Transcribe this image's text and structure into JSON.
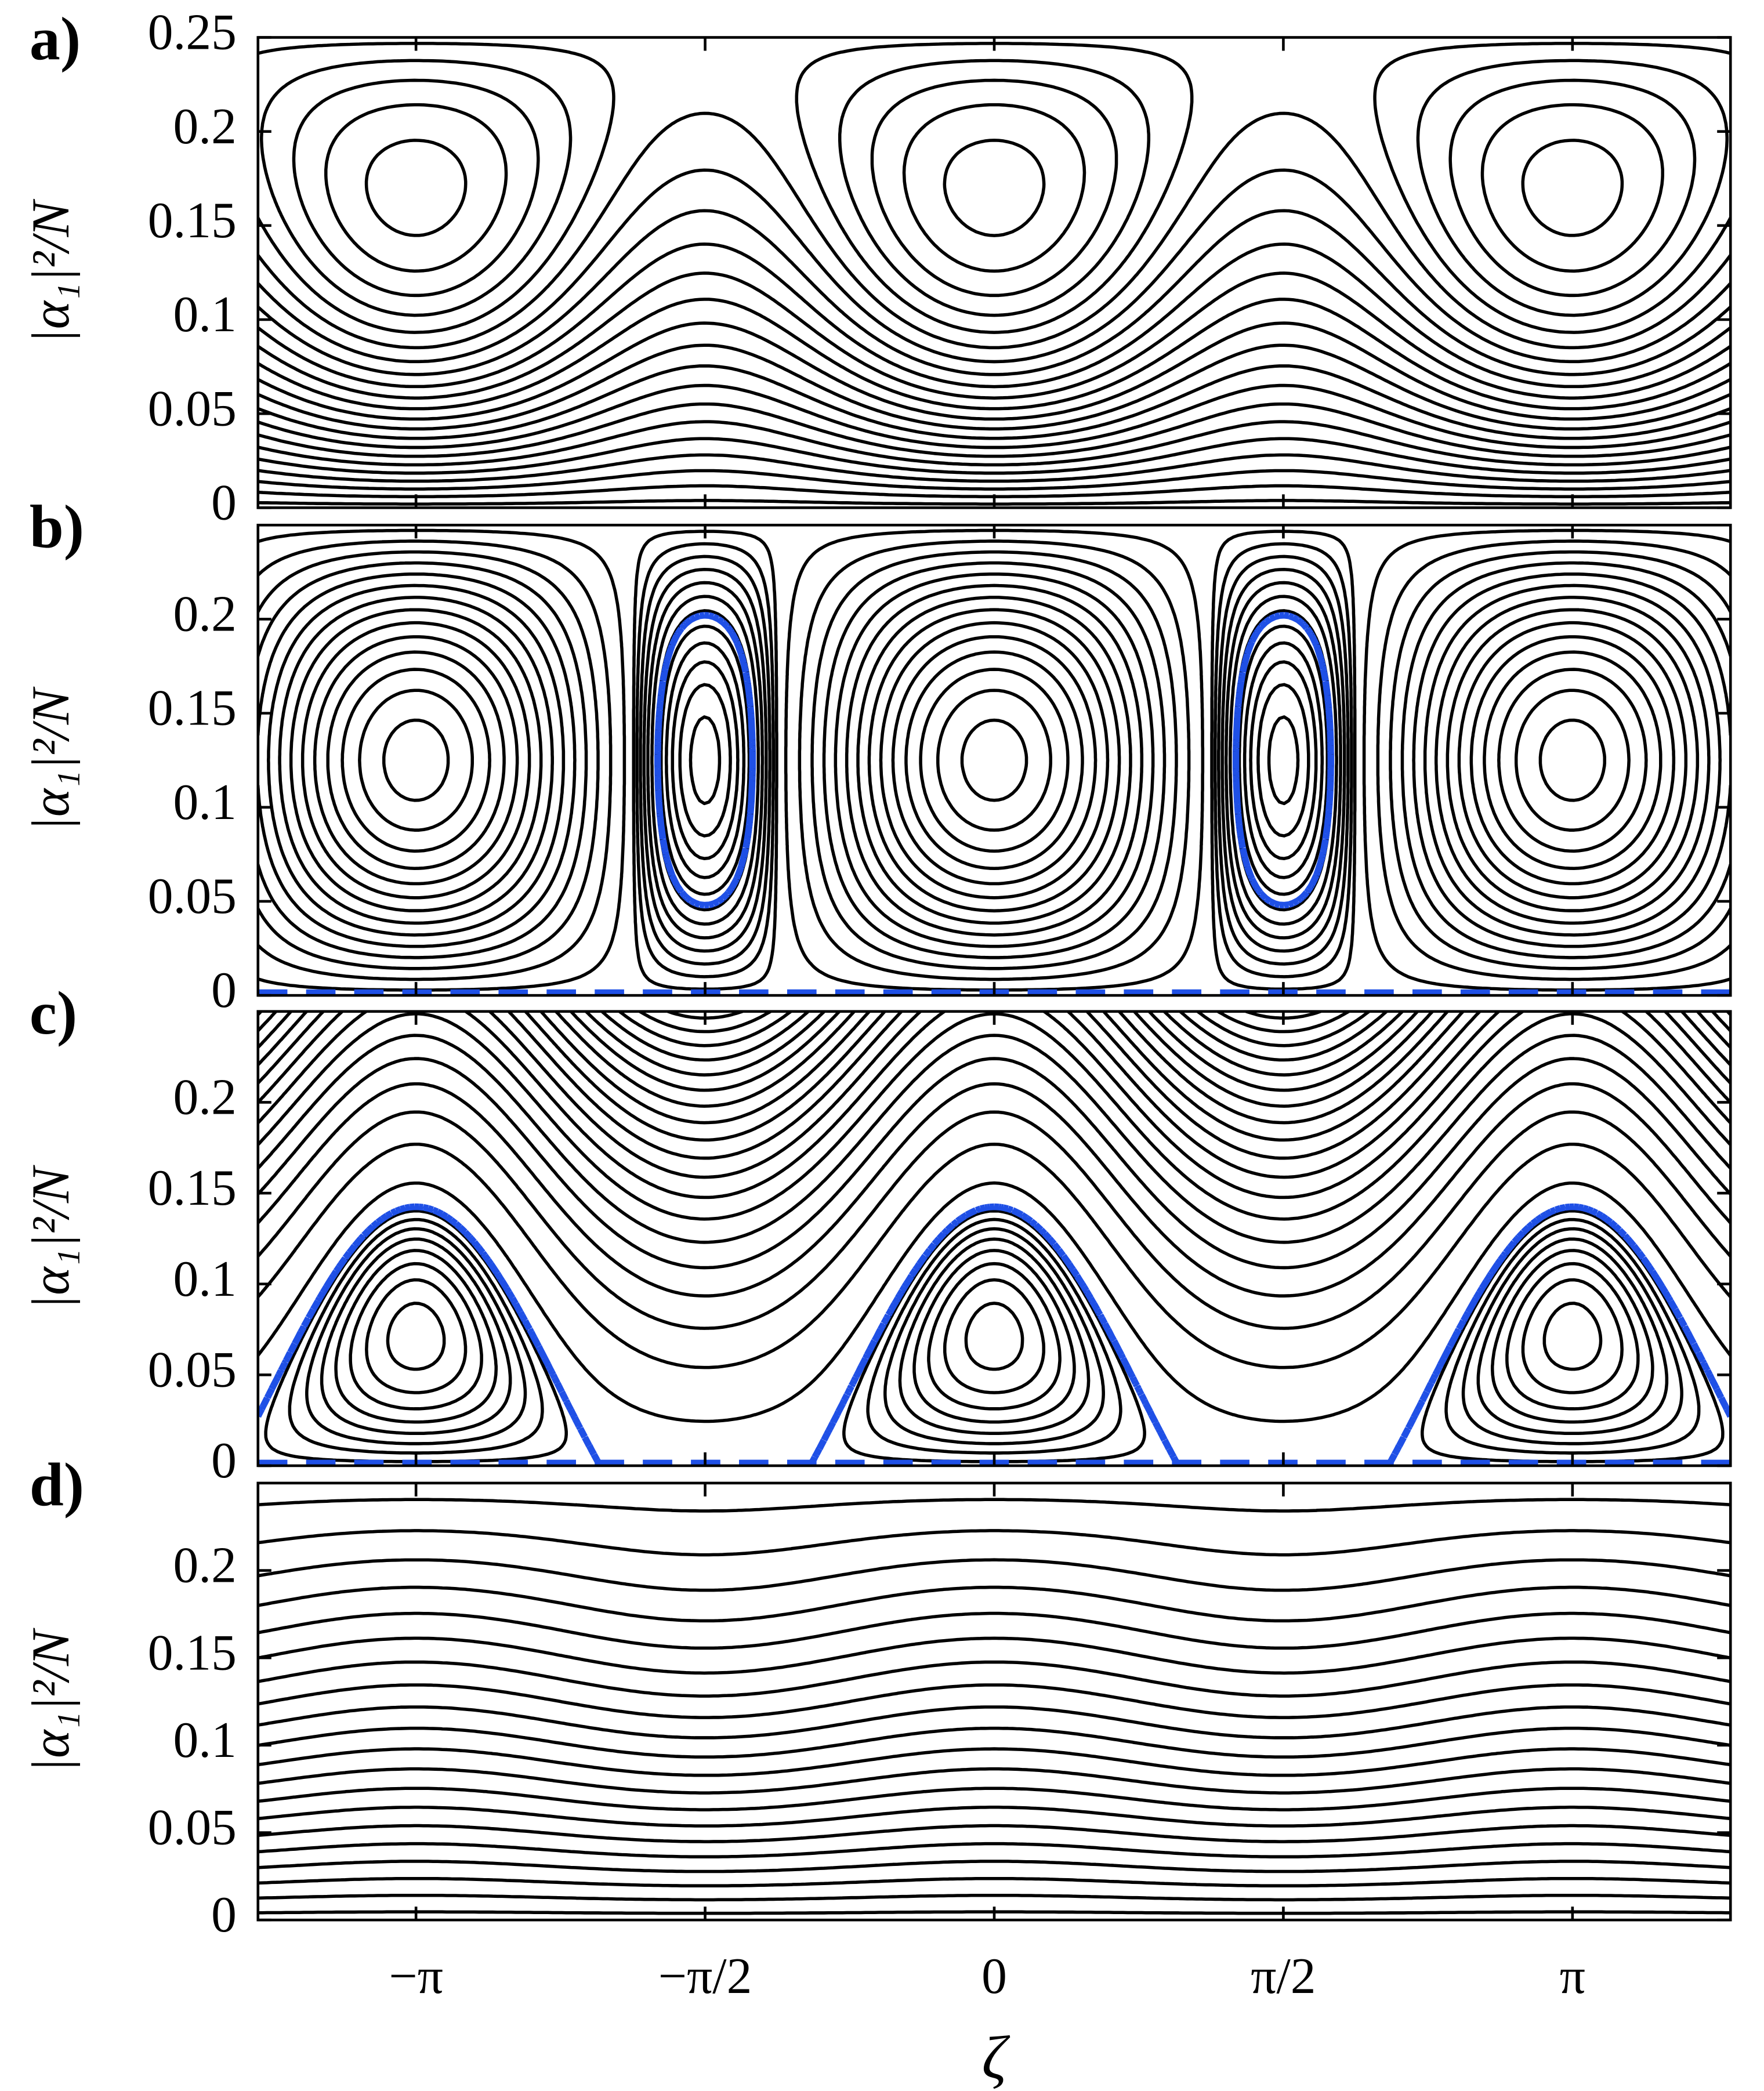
{
  "chart_data": [
    {
      "type": "contour",
      "panel_label": "a)",
      "ylabel": "|α₁|²/N",
      "xlim": [
        -4,
        4
      ],
      "ylim": [
        0,
        0.25
      ],
      "xticks": [
        -3.14159,
        -1.5708,
        0,
        1.5708,
        3.14159
      ],
      "yticks": [
        0,
        0.05,
        0.1,
        0.15,
        0.2,
        0.25
      ],
      "line_color": "#000000"
    },
    {
      "type": "contour",
      "panel_label": "b)",
      "ylabel": "|α₁|²/N",
      "xlim": [
        -4,
        4
      ],
      "ylim": [
        0,
        0.25
      ],
      "xticks": [
        -3.14159,
        -1.5708,
        0,
        1.5708,
        3.14159
      ],
      "yticks": [
        0,
        0.05,
        0.1,
        0.15,
        0.2
      ],
      "line_color": "#000000",
      "separatrix_color": "#1f50e6"
    },
    {
      "type": "contour",
      "panel_label": "c)",
      "ylabel": "|α₁|²/N",
      "xlim": [
        -4,
        4
      ],
      "ylim": [
        0,
        0.25
      ],
      "xticks": [
        -3.14159,
        -1.5708,
        0,
        1.5708,
        3.14159
      ],
      "yticks": [
        0,
        0.05,
        0.1,
        0.15,
        0.2
      ],
      "line_color": "#000000",
      "separatrix_color": "#1f50e6"
    },
    {
      "type": "contour",
      "panel_label": "d)",
      "ylabel": "|α₁|²/N",
      "xlabel": "ζ",
      "xlim": [
        -4,
        4
      ],
      "ylim": [
        0,
        0.25
      ],
      "xticks": [
        {
          "value": -3.14159,
          "label": "−π"
        },
        {
          "value": -1.5708,
          "label": "−π/2"
        },
        {
          "value": 0,
          "label": "0"
        },
        {
          "value": 1.5708,
          "label": "π/2"
        },
        {
          "value": 3.14159,
          "label": "π"
        }
      ],
      "yticks": [
        0,
        0.05,
        0.1,
        0.15,
        0.2
      ],
      "line_color": "#000000"
    }
  ]
}
